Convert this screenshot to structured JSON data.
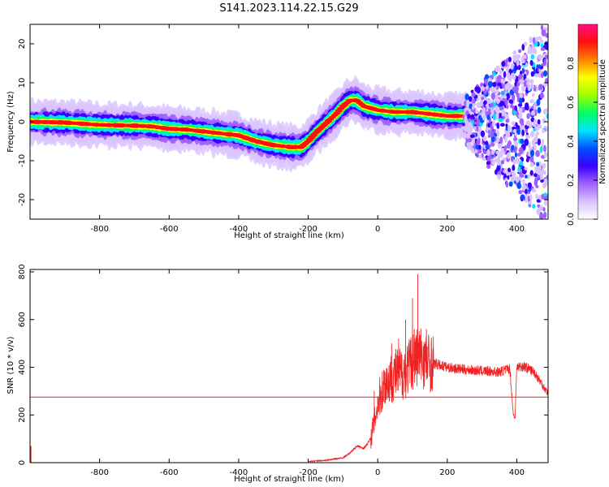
{
  "title": "S141.2023.114.22.15.G29",
  "chart_data": [
    {
      "type": "heatmap",
      "xlabel": "Height of straight line (km)",
      "ylabel": "Frequency (Hz)",
      "xlim": [
        -1000,
        490
      ],
      "ylim": [
        -25,
        25
      ],
      "xticks": [
        -800,
        -600,
        -400,
        -200,
        0,
        200,
        400
      ],
      "yticks": [
        -20,
        -10,
        0,
        10,
        20
      ],
      "ridge": {
        "x": [
          -1000,
          -900,
          -800,
          -700,
          -650,
          -600,
          -550,
          -500,
          -450,
          -400,
          -350,
          -300,
          -250,
          -220,
          -200,
          -180,
          -150,
          -120,
          -100,
          -80,
          -60,
          -40,
          -20,
          0,
          50,
          100,
          150,
          200,
          230,
          250
        ],
        "y": [
          0,
          -0.2,
          -0.8,
          -1,
          -1.2,
          -1.8,
          -2,
          -2.5,
          -3,
          -3.5,
          -5,
          -6,
          -6.5,
          -6.5,
          -5,
          -3,
          -0.5,
          2,
          4,
          5.5,
          5.5,
          4,
          3.5,
          3,
          2.5,
          2.5,
          2,
          1.5,
          1.5,
          1.5
        ]
      },
      "scatter_region": {
        "x_start": 250,
        "x_end": 490
      },
      "colorbar": {
        "label": "Normalized spectral amplitude",
        "ticks": [
          "0.0",
          "0.2",
          "0.4",
          "0.6",
          "0.8"
        ],
        "tick_values": [
          0,
          0.2,
          0.4,
          0.6,
          0.8
        ],
        "colors": [
          "#ffffff",
          "#d9c3ff",
          "#a060ff",
          "#3a00ff",
          "#0050ff",
          "#00e5ff",
          "#00ff60",
          "#a0ff00",
          "#ffff00",
          "#ff8000",
          "#ff1010",
          "#ff1080"
        ]
      }
    },
    {
      "type": "line",
      "xlabel": "Height of straight line (km)",
      "ylabel": "SNR (10 * v/v)",
      "xlim": [
        -1000,
        490
      ],
      "ylim": [
        0,
        810
      ],
      "xticks": [
        -800,
        -600,
        -400,
        -200,
        0,
        200,
        400
      ],
      "yticks": [
        0,
        200,
        400,
        600,
        800
      ],
      "color": "#ee2222",
      "threshold": 275,
      "series": [
        {
          "x": [
            -200,
            -150,
            -100,
            -80,
            -60,
            -40,
            -20,
            0,
            20,
            50,
            80,
            100,
            120,
            150,
            200,
            250,
            300,
            350,
            380,
            390,
            395,
            400,
            420,
            450,
            490
          ],
          "y": [
            5,
            10,
            20,
            40,
            70,
            60,
            100,
            250,
            330,
            370,
            380,
            430,
            450,
            420,
            400,
            390,
            385,
            380,
            395,
            200,
            190,
            400,
            405,
            380,
            290
          ],
          "spikes": [
            {
              "x": 105,
              "y": 560
            },
            {
              "x": 115,
              "y": 790
            },
            {
              "x": 100,
              "y": 690
            },
            {
              "x": 80,
              "y": 600
            },
            {
              "x": 60,
              "y": 520
            },
            {
              "x": 140,
              "y": 560
            },
            {
              "x": 40,
              "y": 500
            },
            {
              "x": -10,
              "y": 300
            }
          ]
        }
      ]
    }
  ]
}
